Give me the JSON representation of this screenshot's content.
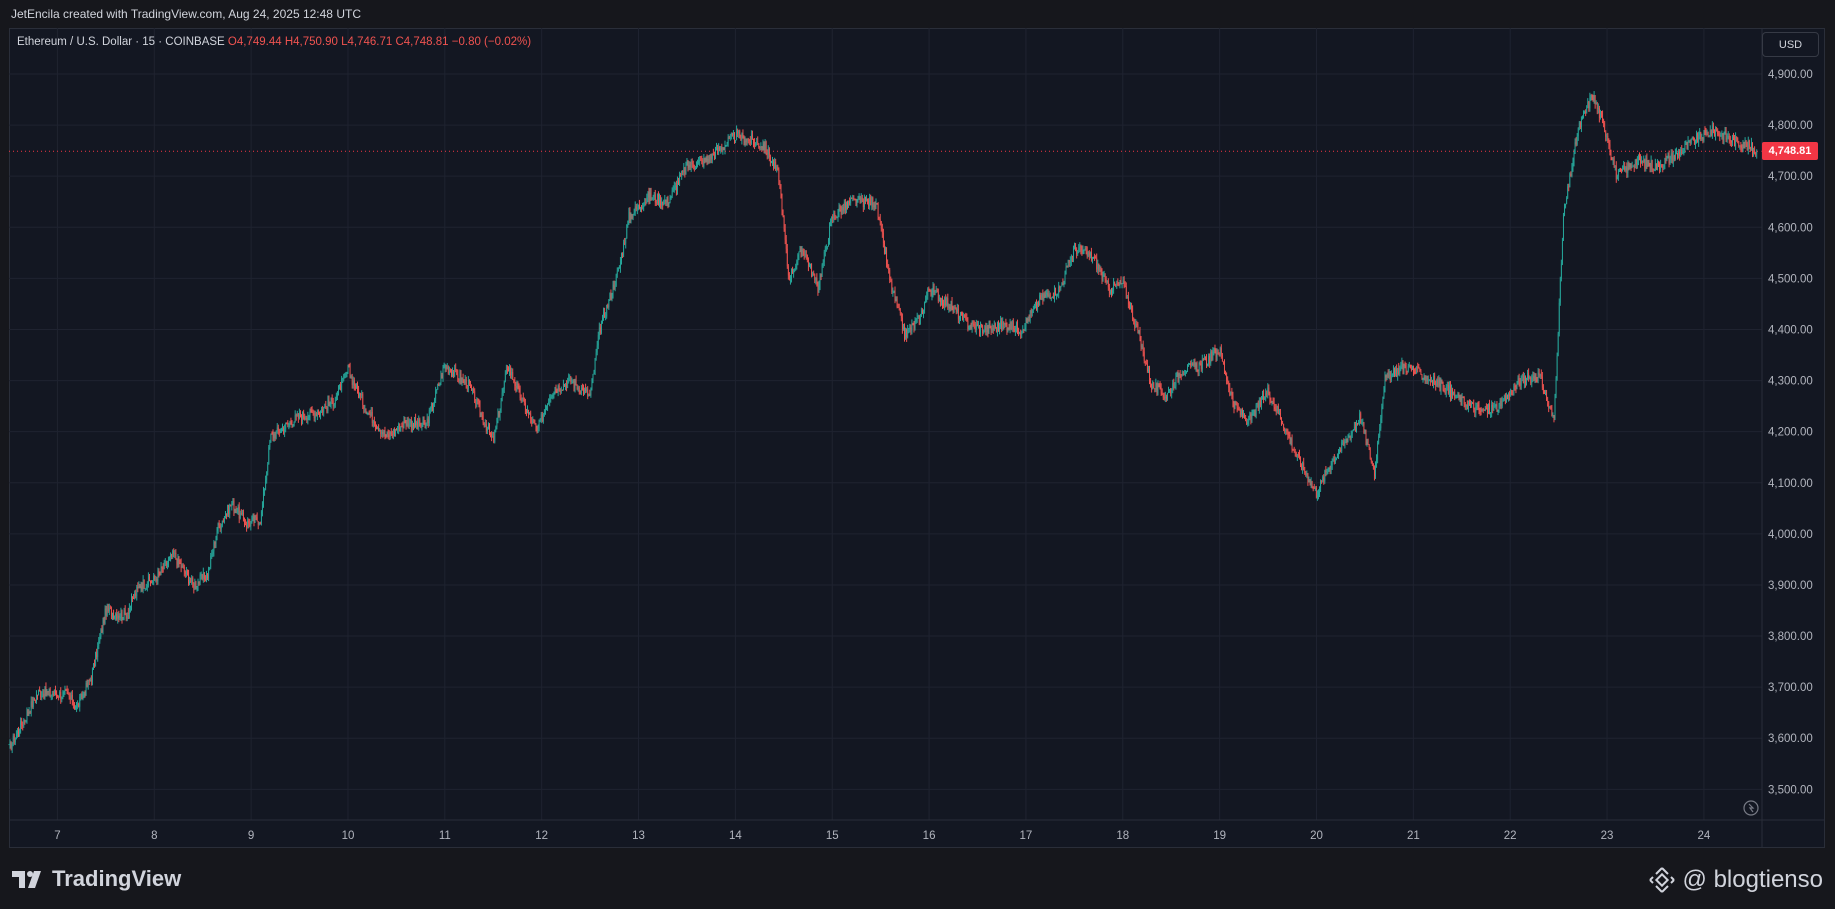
{
  "header": {
    "attribution": "JetEncila created with TradingView.com, Aug 24, 2025 12:48 UTC"
  },
  "legend": {
    "symbol": "Ethereum / U.S. Dollar · 15 · COINBASE",
    "open": "O4,749.44",
    "high": "H4,750.90",
    "low": "L4,746.71",
    "close": "C4,748.81",
    "change": "−0.80 (−0.02%)"
  },
  "currency_button": "USD",
  "last_price_label": "4,748.81",
  "footer": {
    "brand": "TradingView",
    "watermark": "@ blogtienso"
  },
  "colors": {
    "background": "#131722",
    "grid": "#1f2330",
    "up": "#26a69a",
    "down": "#ef5350",
    "price_line": "#f23645"
  },
  "chart_data": {
    "type": "candlestick",
    "interval": "15",
    "y_axis_side": "right",
    "ylim": [
      3440,
      4990
    ],
    "y_ticks": [
      3500,
      3600,
      3700,
      3800,
      3900,
      4000,
      4100,
      4200,
      4300,
      4400,
      4500,
      4600,
      4700,
      4800,
      4900
    ],
    "y_tick_labels": [
      "3,500.00",
      "3,600.00",
      "3,700.00",
      "3,800.00",
      "3,900.00",
      "4,000.00",
      "4,100.00",
      "4,200.00",
      "4,300.00",
      "4,400.00",
      "4,500.00",
      "4,600.00",
      "4,700.00",
      "4,800.00",
      "4,900.00"
    ],
    "xlim": [
      6.5,
      24.6
    ],
    "x_ticks": [
      7,
      8,
      9,
      10,
      11,
      12,
      13,
      14,
      15,
      16,
      17,
      18,
      19,
      20,
      21,
      22,
      23,
      24
    ],
    "x_tick_labels": [
      "7",
      "8",
      "9",
      "10",
      "11",
      "12",
      "13",
      "14",
      "15",
      "16",
      "17",
      "18",
      "19",
      "20",
      "21",
      "22",
      "23",
      "24"
    ],
    "last_price": 4748.81,
    "grid": true,
    "series": [
      {
        "values": [
          [
            6.5,
            3580
          ],
          [
            6.8,
            3690
          ],
          [
            7.1,
            3685
          ],
          [
            7.2,
            3660
          ],
          [
            7.35,
            3720
          ],
          [
            7.5,
            3850
          ],
          [
            7.7,
            3840
          ],
          [
            7.85,
            3900
          ],
          [
            8.0,
            3910
          ],
          [
            8.2,
            3960
          ],
          [
            8.4,
            3900
          ],
          [
            8.55,
            3920
          ],
          [
            8.65,
            4010
          ],
          [
            8.8,
            4060
          ],
          [
            8.95,
            4020
          ],
          [
            9.1,
            4030
          ],
          [
            9.2,
            4190
          ],
          [
            9.5,
            4230
          ],
          [
            9.7,
            4240
          ],
          [
            9.85,
            4260
          ],
          [
            10.0,
            4320
          ],
          [
            10.2,
            4240
          ],
          [
            10.4,
            4190
          ],
          [
            10.6,
            4220
          ],
          [
            10.8,
            4210
          ],
          [
            11.0,
            4330
          ],
          [
            11.25,
            4290
          ],
          [
            11.5,
            4180
          ],
          [
            11.65,
            4330
          ],
          [
            11.8,
            4260
          ],
          [
            11.95,
            4200
          ],
          [
            12.1,
            4280
          ],
          [
            12.3,
            4300
          ],
          [
            12.5,
            4270
          ],
          [
            12.6,
            4400
          ],
          [
            12.8,
            4520
          ],
          [
            12.9,
            4620
          ],
          [
            13.1,
            4660
          ],
          [
            13.3,
            4650
          ],
          [
            13.5,
            4720
          ],
          [
            13.7,
            4730
          ],
          [
            14.0,
            4780
          ],
          [
            14.3,
            4760
          ],
          [
            14.45,
            4700
          ],
          [
            14.55,
            4500
          ],
          [
            14.7,
            4560
          ],
          [
            14.85,
            4480
          ],
          [
            15.0,
            4620
          ],
          [
            15.2,
            4650
          ],
          [
            15.45,
            4650
          ],
          [
            15.6,
            4490
          ],
          [
            15.75,
            4390
          ],
          [
            15.9,
            4420
          ],
          [
            16.0,
            4480
          ],
          [
            16.2,
            4450
          ],
          [
            16.4,
            4410
          ],
          [
            16.6,
            4400
          ],
          [
            16.8,
            4410
          ],
          [
            16.95,
            4400
          ],
          [
            17.15,
            4460
          ],
          [
            17.35,
            4480
          ],
          [
            17.5,
            4560
          ],
          [
            17.7,
            4540
          ],
          [
            17.85,
            4480
          ],
          [
            18.0,
            4490
          ],
          [
            18.15,
            4400
          ],
          [
            18.3,
            4290
          ],
          [
            18.45,
            4270
          ],
          [
            18.6,
            4320
          ],
          [
            18.8,
            4330
          ],
          [
            19.0,
            4360
          ],
          [
            19.15,
            4250
          ],
          [
            19.3,
            4220
          ],
          [
            19.5,
            4280
          ],
          [
            19.65,
            4220
          ],
          [
            19.8,
            4150
          ],
          [
            20.0,
            4080
          ],
          [
            20.15,
            4140
          ],
          [
            20.3,
            4180
          ],
          [
            20.45,
            4230
          ],
          [
            20.6,
            4120
          ],
          [
            20.7,
            4300
          ],
          [
            20.9,
            4330
          ],
          [
            21.1,
            4310
          ],
          [
            21.3,
            4290
          ],
          [
            21.5,
            4260
          ],
          [
            21.7,
            4240
          ],
          [
            21.9,
            4250
          ],
          [
            22.1,
            4300
          ],
          [
            22.3,
            4310
          ],
          [
            22.45,
            4220
          ],
          [
            22.55,
            4620
          ],
          [
            22.7,
            4790
          ],
          [
            22.85,
            4860
          ],
          [
            23.0,
            4780
          ],
          [
            23.1,
            4700
          ],
          [
            23.3,
            4730
          ],
          [
            23.5,
            4720
          ],
          [
            23.7,
            4740
          ],
          [
            23.9,
            4770
          ],
          [
            24.1,
            4790
          ],
          [
            24.3,
            4770
          ],
          [
            24.45,
            4760
          ],
          [
            24.55,
            4748.81
          ]
        ]
      }
    ]
  }
}
